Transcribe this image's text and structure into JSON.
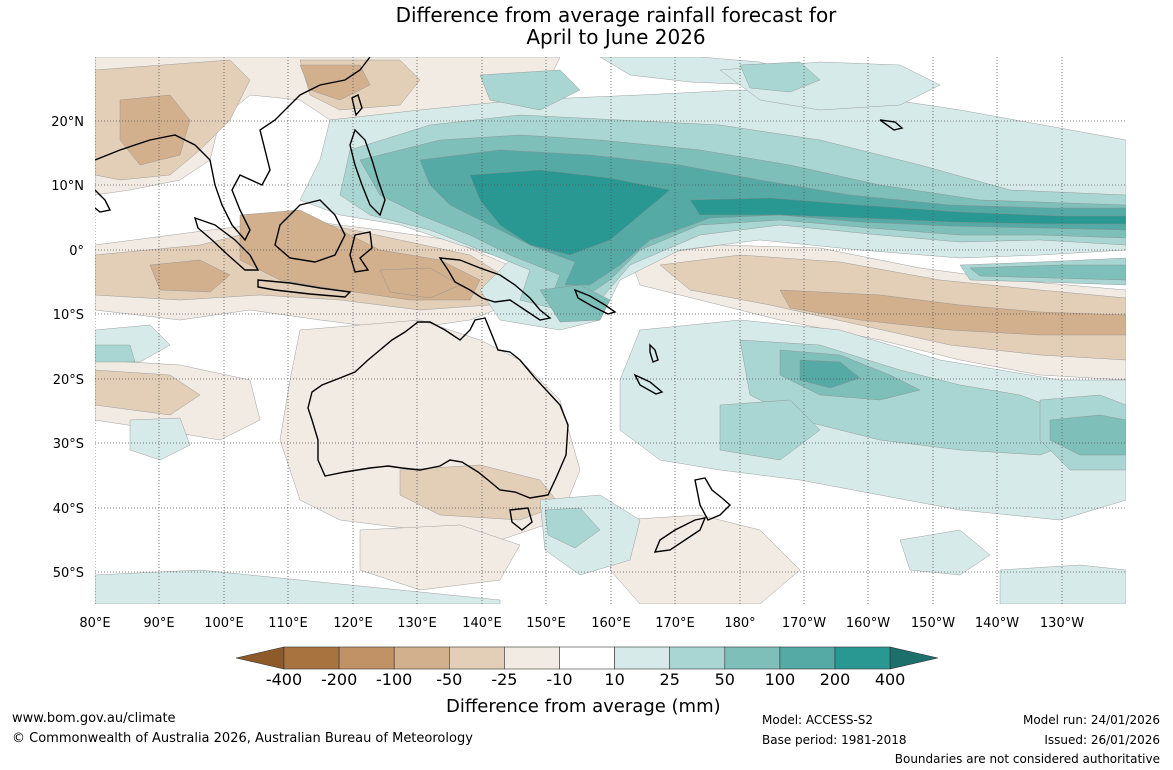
{
  "title": {
    "line1": "Difference from average rainfall forecast for",
    "line2": "April to June 2026"
  },
  "map": {
    "lat_labels": [
      "20°N",
      "10°N",
      "0°",
      "10°S",
      "20°S",
      "30°S",
      "40°S",
      "50°S"
    ],
    "lon_labels": [
      "80°E",
      "90°E",
      "100°E",
      "110°E",
      "120°E",
      "130°E",
      "140°E",
      "150°E",
      "160°E",
      "170°E",
      "180°",
      "170°W",
      "160°W",
      "150°W",
      "140°W",
      "130°W"
    ]
  },
  "colorbar": {
    "title": "Difference from average (mm)",
    "tick_labels": [
      "-400",
      "-200",
      "-100",
      "-50",
      "-25",
      "-10",
      "10",
      "25",
      "50",
      "100",
      "200",
      "400"
    ],
    "colors": {
      "dry_extreme": "#8e5a2c",
      "d400": "#a8733f",
      "d200": "#c09266",
      "d100": "#d2b08e",
      "d50": "#e3cfb8",
      "d25": "#f1ebe4",
      "neutral": "#ffffff",
      "w25": "#d6ebe9",
      "w50": "#a9d6d2",
      "w100": "#7ebfba",
      "w200": "#55aaa6",
      "w400": "#2a9892",
      "wet_extreme": "#1c6f6b"
    }
  },
  "footer": {
    "website": "www.bom.gov.au/climate",
    "copyright": "© Commonwealth of Australia 2026, Australian Bureau of Meteorology",
    "model": "Model: ACCESS-S2",
    "base_period": "Base period: 1981-2018",
    "model_run": "Model run: 24/01/2026",
    "issued": "Issued: 26/01/2026",
    "disclaimer": "Boundaries are not considered authoritative"
  }
}
